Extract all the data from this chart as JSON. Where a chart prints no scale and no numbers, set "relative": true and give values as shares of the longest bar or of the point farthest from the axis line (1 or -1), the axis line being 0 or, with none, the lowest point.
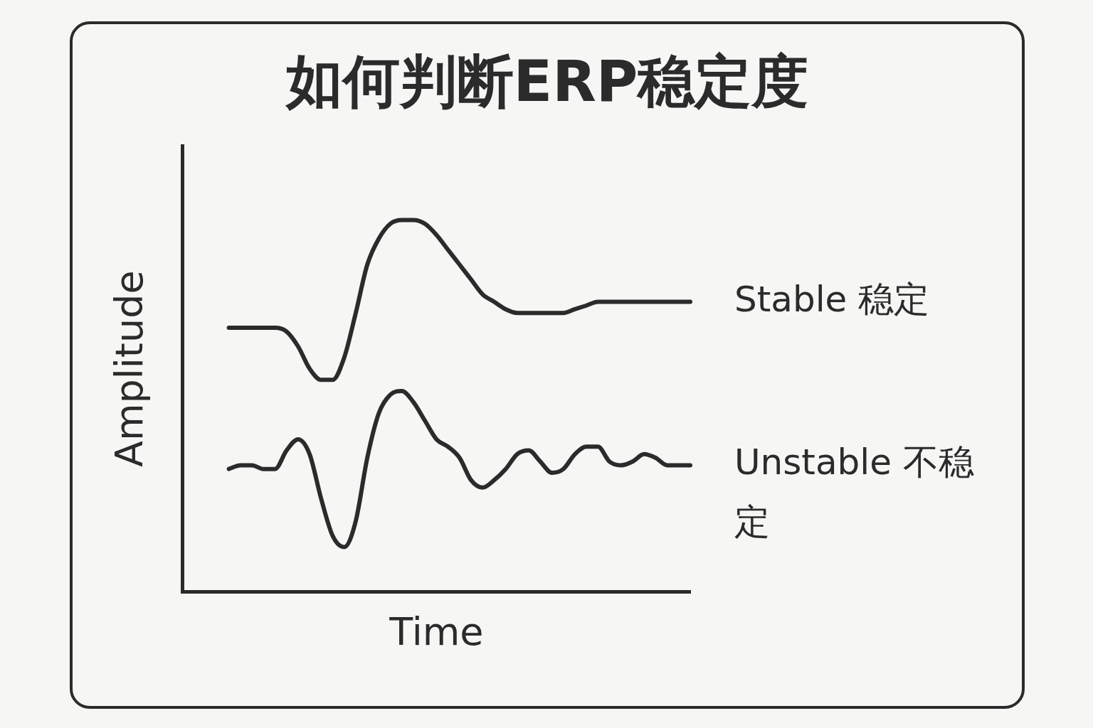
{
  "chart_data": {
    "type": "line",
    "title": "如何判断ERP稳定度",
    "xlabel": "Time",
    "ylabel": "Amplitude",
    "relative": true,
    "grid": false,
    "categories": [
      null,
      null,
      null,
      null,
      null,
      null,
      null,
      null,
      null,
      null,
      null,
      null,
      null,
      null,
      null,
      null,
      null,
      null,
      null,
      null,
      null,
      null,
      null,
      null,
      null,
      null,
      null,
      null,
      null,
      null,
      null,
      null,
      null,
      null,
      null,
      null,
      null,
      null,
      null,
      null,
      null,
      null,
      null,
      null,
      null
    ],
    "series": [
      {
        "name": "Stable 稳定",
        "color": "#2b2b2b",
        "values": [
          null,
          null,
          null,
          null,
          0.71,
          0.71,
          0.71,
          0.71,
          0.71,
          0.7,
          0.66,
          0.6,
          0.57,
          0.57,
          0.63,
          0.75,
          0.88,
          0.95,
          0.99,
          1.0,
          1.0,
          0.99,
          0.96,
          0.92,
          0.88,
          0.84,
          0.8,
          0.78,
          0.76,
          0.75,
          0.75,
          0.75,
          0.75,
          0.75,
          0.76,
          0.77,
          0.78,
          0.78,
          0.78,
          0.78,
          0.78,
          0.78,
          0.78,
          0.78,
          0.78
        ]
      },
      {
        "name": "Unstable 不稳定",
        "color": "#2b2b2b",
        "values": [
          null,
          null,
          null,
          null,
          0.33,
          0.34,
          0.34,
          0.33,
          0.33,
          0.38,
          0.41,
          0.37,
          0.25,
          0.15,
          0.12,
          0.19,
          0.36,
          0.48,
          0.53,
          0.54,
          0.51,
          0.46,
          0.41,
          0.39,
          0.36,
          0.3,
          0.28,
          0.3,
          0.33,
          0.37,
          0.38,
          0.35,
          0.32,
          0.33,
          0.37,
          0.39,
          0.39,
          0.35,
          0.34,
          0.35,
          0.37,
          0.36,
          0.34,
          0.34,
          0.34
        ]
      }
    ]
  }
}
